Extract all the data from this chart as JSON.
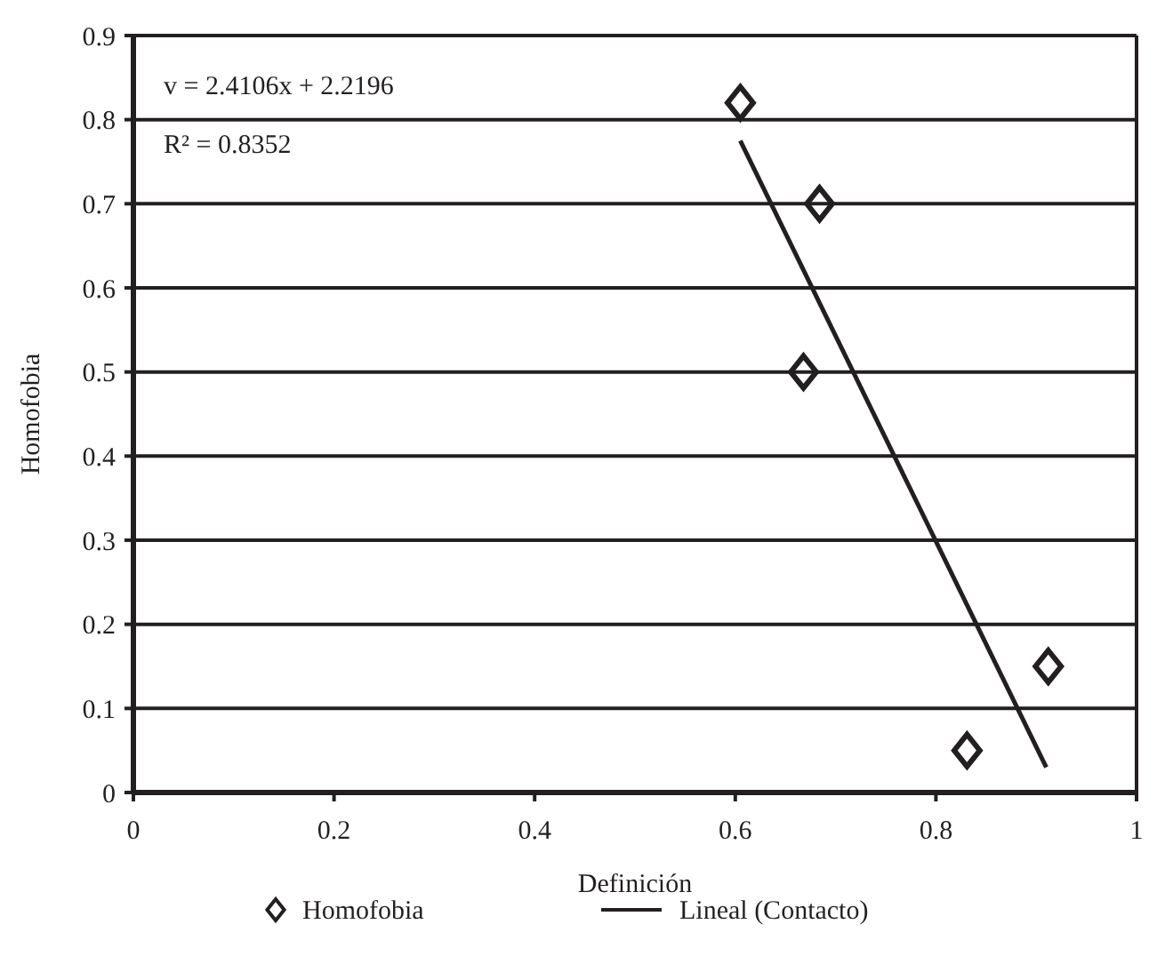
{
  "chart_data": {
    "type": "scatter",
    "xlabel": "Definición",
    "ylabel": "Homofobia",
    "xlim": [
      0,
      1
    ],
    "xticks": [
      0,
      0.2,
      0.4,
      0.6,
      0.8,
      1
    ],
    "ylim": [
      0,
      0.9
    ],
    "yticks": [
      0,
      0.1,
      0.2,
      0.3,
      0.4,
      0.5,
      0.6,
      0.7,
      0.8,
      0.9
    ],
    "grid": "y",
    "legend": "bottom",
    "annotations": [
      "v = 2.4106x + 2.2196",
      "R² = 0.8352"
    ],
    "series": [
      {
        "name": "Homofobia",
        "marker": "diamond",
        "color": "#231f20",
        "x": [
          0.605,
          0.684,
          0.668,
          0.831,
          0.912
        ],
        "values": [
          0.82,
          0.7,
          0.5,
          0.05,
          0.15
        ]
      },
      {
        "name": "Lineal (Contacto)",
        "type": "line",
        "marker": "none",
        "color": "#231f20",
        "line_style": "solid",
        "x": [
          0.605,
          0.91
        ],
        "values": [
          0.775,
          0.03
        ]
      }
    ]
  }
}
